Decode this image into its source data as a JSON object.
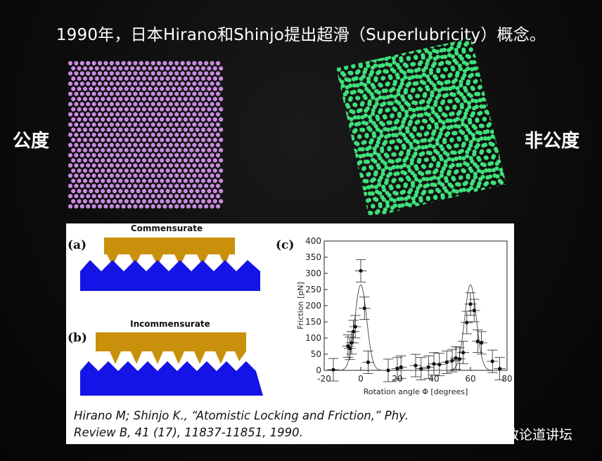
{
  "title": "1990年，日本Hirano和Shinjo提出超滑（Superlubricity）概念。",
  "labels": {
    "left": "公度",
    "right": "非公度"
  },
  "colors": {
    "commensurate_atoms": "#c98be0",
    "incommensurate_atoms": "#3fe07a",
    "slider": "#c9900c",
    "substrate": "#1414e6",
    "data_points": "#111111"
  },
  "figure": {
    "panel_a": {
      "tag": "(a)",
      "caption": "Commensurate"
    },
    "panel_b": {
      "tag": "(b)",
      "caption": "Incommensurate"
    },
    "panel_c": {
      "tag": "(c)"
    }
  },
  "chart_data": {
    "type": "scatter",
    "xlabel": "Rotation angle Φ [degrees]",
    "ylabel": "Friction [pN]",
    "xlim": [
      -20,
      80
    ],
    "ylim": [
      0,
      400
    ],
    "xticks": [
      -20,
      0,
      20,
      40,
      60,
      80
    ],
    "yticks": [
      0,
      50,
      100,
      150,
      200,
      250,
      300,
      350,
      400
    ],
    "points": [
      {
        "x": -15,
        "y": 2
      },
      {
        "x": -7,
        "y": 75
      },
      {
        "x": -6,
        "y": 68
      },
      {
        "x": -5,
        "y": 85
      },
      {
        "x": -4,
        "y": 120
      },
      {
        "x": -3,
        "y": 135
      },
      {
        "x": 0,
        "y": 308
      },
      {
        "x": 2,
        "y": 192
      },
      {
        "x": 4,
        "y": 25
      },
      {
        "x": 15,
        "y": 0
      },
      {
        "x": 20,
        "y": 5
      },
      {
        "x": 22,
        "y": 10
      },
      {
        "x": 30,
        "y": 15
      },
      {
        "x": 33,
        "y": 5
      },
      {
        "x": 37,
        "y": 10
      },
      {
        "x": 40,
        "y": 20
      },
      {
        "x": 43,
        "y": 18
      },
      {
        "x": 47,
        "y": 25
      },
      {
        "x": 50,
        "y": 30
      },
      {
        "x": 52,
        "y": 38
      },
      {
        "x": 54,
        "y": 35
      },
      {
        "x": 56,
        "y": 55
      },
      {
        "x": 58,
        "y": 148
      },
      {
        "x": 60,
        "y": 205
      },
      {
        "x": 62,
        "y": 185
      },
      {
        "x": 64,
        "y": 90
      },
      {
        "x": 66,
        "y": 85
      },
      {
        "x": 72,
        "y": 28
      },
      {
        "x": 76,
        "y": 5
      }
    ],
    "fit_curve_peaks": [
      {
        "x": 0,
        "y": 265
      },
      {
        "x": 60,
        "y": 265
      }
    ]
  },
  "citation": {
    "line1": "Hirano M; Shinjo K.,  “Atomistic Locking and Friction,”  Phy.",
    "line2": "Review B, 41 (17), 11837-11851, 1990."
  },
  "watermark": {
    "text": "格致论道讲坛",
    "icon": "chat-bubbles-icon"
  }
}
